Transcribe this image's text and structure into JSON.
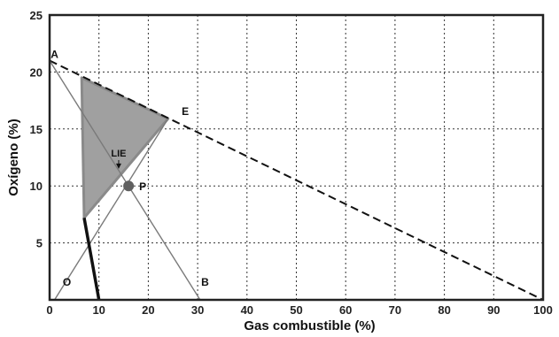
{
  "chart_data": {
    "type": "line",
    "xlabel": "Gas combustible (%)",
    "ylabel": "Oxígeno (%)",
    "xlim": [
      0,
      100
    ],
    "ylim": [
      0,
      25
    ],
    "x_ticks": [
      "0",
      "10",
      "20",
      "30",
      "40",
      "50",
      "60",
      "70",
      "80",
      "90",
      "100"
    ],
    "y_ticks": [
      "5",
      "10",
      "15",
      "20",
      "25"
    ],
    "grid": "dotted",
    "flammable_region": [
      [
        6.5,
        19.5
      ],
      [
        24,
        15.9
      ],
      [
        7,
        7.2
      ]
    ],
    "series": [
      {
        "id": "air-line",
        "style": "dashed",
        "x": [
          0,
          100
        ],
        "y": [
          21,
          0
        ]
      },
      {
        "id": "line-A-B",
        "style": "thin",
        "x": [
          0,
          30.5
        ],
        "y": [
          21,
          0
        ]
      },
      {
        "id": "line-O-E",
        "style": "thin",
        "x": [
          1,
          24
        ],
        "y": [
          0,
          15.9
        ]
      },
      {
        "id": "inert-line",
        "style": "thick",
        "x": [
          7,
          10
        ],
        "y": [
          7.2,
          0
        ]
      }
    ],
    "points": [
      {
        "label": "A",
        "x": 1,
        "y": 21
      },
      {
        "label": "E",
        "x": 27.5,
        "y": 16
      },
      {
        "label": "O",
        "x": 3.5,
        "y": 1
      },
      {
        "label": "B",
        "x": 31.5,
        "y": 1
      }
    ],
    "marker_points": [
      {
        "label": "P",
        "x": 16,
        "y": 10
      }
    ],
    "annotations": [
      {
        "text": "LIE",
        "x": 14,
        "y": 12.5,
        "arrow_to": [
          14,
          11.5
        ]
      }
    ],
    "colors": {
      "region_fill": "#a0a0a0",
      "region_stroke": "#8a8a8a",
      "line": "#7a7a7a",
      "dashed": "#111111",
      "thick": "#111111",
      "marker": "#606060",
      "grid": "#333333"
    }
  }
}
